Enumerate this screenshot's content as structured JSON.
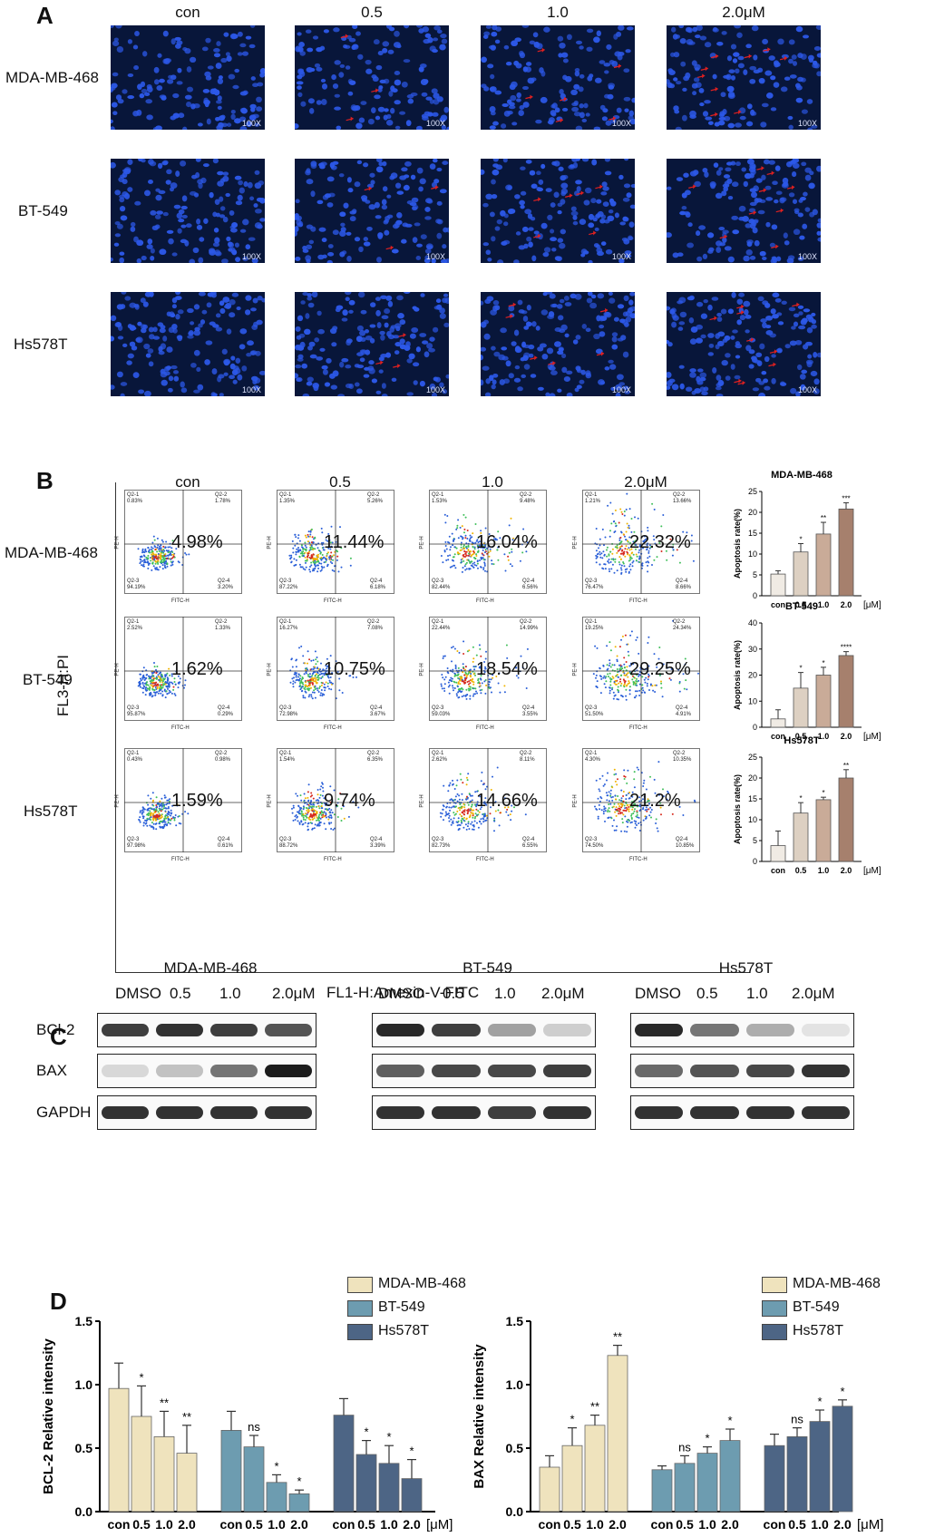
{
  "panelA": {
    "letter": "A",
    "columns": [
      "con",
      "0.5",
      "1.0",
      "2.0μM"
    ],
    "rows": [
      "MDA-MB-468",
      "BT-549",
      "Hs578T"
    ],
    "magnification": "100X",
    "colors": {
      "bg": "#08163a",
      "nuclei": "#2c58e8",
      "arrow": "#e02020"
    }
  },
  "panelB": {
    "letter": "B",
    "columns": [
      "con",
      "0.5",
      "1.0",
      "2.0μM"
    ],
    "rows": [
      "MDA-MB-468",
      "BT-549",
      "Hs578T"
    ],
    "y_axis_label": "FL3-H:PI",
    "x_axis_label": "FL1-H:Amexin-V-FITC",
    "flow_x_label": "FITC-H",
    "flow_y_label": "PE-H",
    "quadrant_names": [
      "Q2-1",
      "Q2-2",
      "Q2-3",
      "Q2-4"
    ],
    "plots": [
      [
        {
          "pct": "4.98%",
          "q1": "0.83%",
          "q2": "1.78%",
          "q3": "94.19%",
          "q4": "3.20%"
        },
        {
          "pct": "11.44%",
          "q1": "1.35%",
          "q2": "5.26%",
          "q3": "87.22%",
          "q4": "6.18%"
        },
        {
          "pct": "16.04%",
          "q1": "1.53%",
          "q2": "9.48%",
          "q3": "82.44%",
          "q4": "6.56%"
        },
        {
          "pct": "22.32%",
          "q1": "1.21%",
          "q2": "13.66%",
          "q3": "76.47%",
          "q4": "8.66%"
        }
      ],
      [
        {
          "pct": "1.62%",
          "q1": "2.52%",
          "q2": "1.33%",
          "q3": "95.87%",
          "q4": "0.29%"
        },
        {
          "pct": "10.75%",
          "q1": "16.27%",
          "q2": "7.08%",
          "q3": "72.98%",
          "q4": "3.67%"
        },
        {
          "pct": "18.54%",
          "q1": "22.44%",
          "q2": "14.99%",
          "q3": "59.03%",
          "q4": "3.55%"
        },
        {
          "pct": "29.25%",
          "q1": "19.25%",
          "q2": "24.34%",
          "q3": "51.50%",
          "q4": "4.91%"
        }
      ],
      [
        {
          "pct": "1.59%",
          "q1": "0.43%",
          "q2": "0.98%",
          "q3": "97.98%",
          "q4": "0.61%"
        },
        {
          "pct": "9.74%",
          "q1": "1.54%",
          "q2": "6.35%",
          "q3": "88.72%",
          "q4": "3.39%"
        },
        {
          "pct": "14.66%",
          "q1": "2.62%",
          "q2": "8.11%",
          "q3": "82.73%",
          "q4": "6.55%"
        },
        {
          "pct": "21.2%",
          "q1": "4.30%",
          "q2": "10.35%",
          "q3": "74.50%",
          "q4": "10.85%"
        }
      ]
    ]
  },
  "panelC": {
    "letter": "C",
    "cell_lines": [
      "MDA-MB-468",
      "BT-549",
      "Hs578T"
    ],
    "lanes": [
      "DMSO",
      "0.5",
      "1.0",
      "2.0μM"
    ],
    "proteins": [
      "BCl-2",
      "BAX",
      "GAPDH"
    ],
    "band_intensity": [
      [
        [
          0.85,
          0.9,
          0.85,
          0.75
        ],
        [
          0.15,
          0.25,
          0.6,
          1.0
        ],
        [
          0.9,
          0.9,
          0.9,
          0.9
        ]
      ],
      [
        [
          0.95,
          0.85,
          0.4,
          0.2
        ],
        [
          0.7,
          0.8,
          0.8,
          0.85
        ],
        [
          0.9,
          0.9,
          0.85,
          0.9
        ]
      ],
      [
        [
          0.95,
          0.6,
          0.35,
          0.1
        ],
        [
          0.65,
          0.75,
          0.8,
          0.9
        ],
        [
          0.9,
          0.9,
          0.9,
          0.9
        ]
      ]
    ]
  },
  "panelD": {
    "letter": "D",
    "legend": [
      "MDA-MB-468",
      "BT-549",
      "Hs578T"
    ]
  },
  "chart_data": [
    {
      "type": "bar",
      "title": "MDA-MB-468",
      "ylabel": "Apoptosis rate(%)",
      "unit": "[μM]",
      "categories": [
        "con",
        "0.5",
        "1.0",
        "2.0"
      ],
      "values": [
        5.2,
        10.5,
        14.8,
        20.8
      ],
      "errors": [
        0.8,
        2.0,
        2.8,
        1.5
      ],
      "significance": [
        "",
        "*",
        "**",
        "***"
      ],
      "ylim": [
        0,
        25
      ],
      "yticks": [
        0,
        5,
        10,
        15,
        20,
        25
      ]
    },
    {
      "type": "bar",
      "title": "BT-549",
      "ylabel": "Apoptosis rate(%)",
      "unit": "[μM]",
      "categories": [
        "con",
        "0.5",
        "1.0",
        "2.0"
      ],
      "values": [
        3.2,
        15.0,
        20.0,
        27.5
      ],
      "errors": [
        3.5,
        6.0,
        3.0,
        1.5
      ],
      "significance": [
        "",
        "*",
        "*",
        "****"
      ],
      "ylim": [
        0,
        40
      ],
      "yticks": [
        0,
        10,
        20,
        30,
        40
      ]
    },
    {
      "type": "bar",
      "title": "Hs578T",
      "ylabel": "Apoptosis rate(%)",
      "unit": "[μM]",
      "categories": [
        "con",
        "0.5",
        "1.0",
        "2.0"
      ],
      "values": [
        3.8,
        11.6,
        14.8,
        20.0
      ],
      "errors": [
        3.5,
        2.5,
        0.6,
        2.0
      ],
      "significance": [
        "",
        "*",
        "*",
        "**"
      ],
      "ylim": [
        0,
        25
      ],
      "yticks": [
        0,
        5,
        10,
        15,
        20,
        25
      ]
    },
    {
      "type": "bar",
      "ylabel": "BCL-2 Relative intensity",
      "unit": "[μM]",
      "groups": [
        "MDA-MB-468",
        "BT-549",
        "Hs578T"
      ],
      "categories": [
        "con",
        "0.5",
        "1.0",
        "2.0"
      ],
      "series": [
        {
          "name": "MDA-MB-468",
          "values": [
            0.97,
            0.75,
            0.59,
            0.46
          ],
          "errors": [
            0.2,
            0.24,
            0.2,
            0.22
          ],
          "significance": [
            "",
            "*",
            "**",
            "**"
          ]
        },
        {
          "name": "BT-549",
          "values": [
            0.64,
            0.51,
            0.23,
            0.14
          ],
          "errors": [
            0.15,
            0.09,
            0.06,
            0.03
          ],
          "significance": [
            "",
            "ns",
            "*",
            "*"
          ]
        },
        {
          "name": "Hs578T",
          "values": [
            0.76,
            0.45,
            0.38,
            0.26
          ],
          "errors": [
            0.13,
            0.11,
            0.14,
            0.15
          ],
          "significance": [
            "",
            "*",
            "*",
            "*"
          ]
        }
      ],
      "ylim": [
        0,
        1.5
      ],
      "yticks": [
        0.0,
        0.5,
        1.0,
        1.5
      ]
    },
    {
      "type": "bar",
      "ylabel": "BAX Relative intensity",
      "unit": "[μM]",
      "groups": [
        "MDA-MB-468",
        "BT-549",
        "Hs578T"
      ],
      "categories": [
        "con",
        "0.5",
        "1.0",
        "2.0"
      ],
      "series": [
        {
          "name": "MDA-MB-468",
          "values": [
            0.35,
            0.52,
            0.68,
            1.23
          ],
          "errors": [
            0.09,
            0.14,
            0.08,
            0.08
          ],
          "significance": [
            "",
            "*",
            "**",
            "**"
          ]
        },
        {
          "name": "BT-549",
          "values": [
            0.33,
            0.38,
            0.46,
            0.56
          ],
          "errors": [
            0.03,
            0.06,
            0.05,
            0.09
          ],
          "significance": [
            "",
            "ns",
            "*",
            "*"
          ]
        },
        {
          "name": "Hs578T",
          "values": [
            0.52,
            0.59,
            0.71,
            0.83
          ],
          "errors": [
            0.09,
            0.07,
            0.09,
            0.05
          ],
          "significance": [
            "",
            "ns",
            "*",
            "*"
          ]
        }
      ],
      "ylim": [
        0,
        1.5
      ],
      "yticks": [
        0.0,
        0.5,
        1.0,
        1.5
      ]
    }
  ],
  "colors": {
    "mda": "#efe3bd",
    "bt": "#6d9cb0",
    "hs": "#4d6585",
    "apop": [
      "#f0ebe4",
      "#ddd0c2",
      "#c9ab98",
      "#a6806d"
    ]
  }
}
